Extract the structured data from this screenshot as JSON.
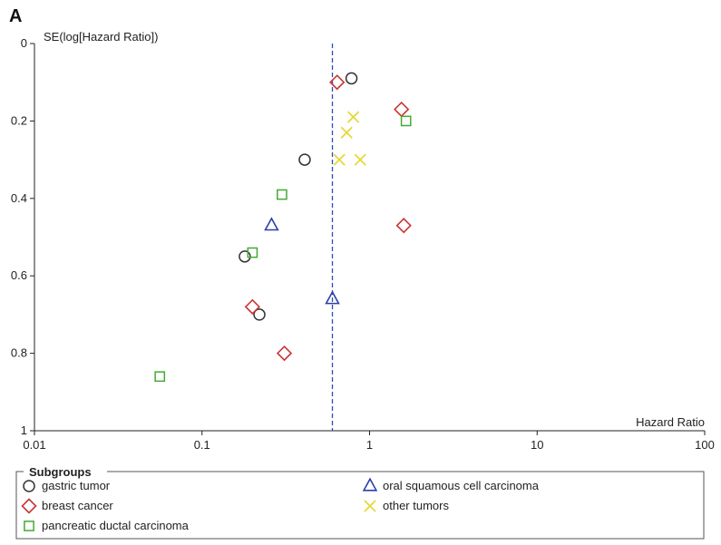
{
  "panel_label": "A",
  "chart_data": {
    "type": "scatter",
    "title": "",
    "xlabel": "Hazard Ratio",
    "ylabel": "SE(log[Hazard Ratio])",
    "x_scale": "log",
    "xlim": [
      0.01,
      100
    ],
    "ylim": [
      0,
      1
    ],
    "y_inverted": true,
    "x_ticks": [
      0.01,
      0.1,
      1,
      10,
      100
    ],
    "x_tick_labels": [
      "0.01",
      "0.1",
      "1",
      "10",
      "100"
    ],
    "y_ticks": [
      0,
      0.2,
      0.4,
      0.6,
      0.8,
      1
    ],
    "y_tick_labels": [
      "0",
      "0.2",
      "0.4",
      "0.6",
      "0.8",
      "1"
    ],
    "reference_line": {
      "x": 0.6,
      "style": "dashed",
      "color": "#2b4bb8"
    },
    "legend": {
      "title": "Subgroups",
      "placement": "bottom",
      "entries": [
        {
          "name": "gastric tumor",
          "marker": "circle",
          "color": "#333333"
        },
        {
          "name": "oral squamous cell carcinoma",
          "marker": "triangle",
          "color": "#2b3fa8"
        },
        {
          "name": "breast cancer",
          "marker": "diamond",
          "color": "#cc3333"
        },
        {
          "name": "other tumors",
          "marker": "cross",
          "color": "#e6d83a"
        },
        {
          "name": "pancreatic ductal carcinoma",
          "marker": "square",
          "color": "#44aa33"
        }
      ]
    },
    "series": [
      {
        "name": "gastric tumor",
        "marker": "circle",
        "color": "#333333",
        "points": [
          [
            0.78,
            0.09
          ],
          [
            0.41,
            0.3
          ],
          [
            0.18,
            0.55
          ],
          [
            0.22,
            0.7
          ]
        ]
      },
      {
        "name": "oral squamous cell carcinoma",
        "marker": "triangle",
        "color": "#2b3fa8",
        "points": [
          [
            0.26,
            0.47
          ],
          [
            0.6,
            0.66
          ]
        ]
      },
      {
        "name": "breast cancer",
        "marker": "diamond",
        "color": "#cc3333",
        "points": [
          [
            0.64,
            0.1
          ],
          [
            1.55,
            0.17
          ],
          [
            1.6,
            0.47
          ],
          [
            0.2,
            0.68
          ],
          [
            0.31,
            0.8
          ]
        ]
      },
      {
        "name": "other tumors",
        "marker": "cross",
        "color": "#e6d83a",
        "points": [
          [
            0.8,
            0.19
          ],
          [
            0.73,
            0.23
          ],
          [
            0.66,
            0.3
          ],
          [
            0.88,
            0.3
          ]
        ]
      },
      {
        "name": "pancreatic ductal carcinoma",
        "marker": "square",
        "color": "#44aa33",
        "points": [
          [
            1.65,
            0.2
          ],
          [
            0.3,
            0.39
          ],
          [
            0.2,
            0.54
          ],
          [
            0.056,
            0.86
          ]
        ]
      }
    ]
  }
}
